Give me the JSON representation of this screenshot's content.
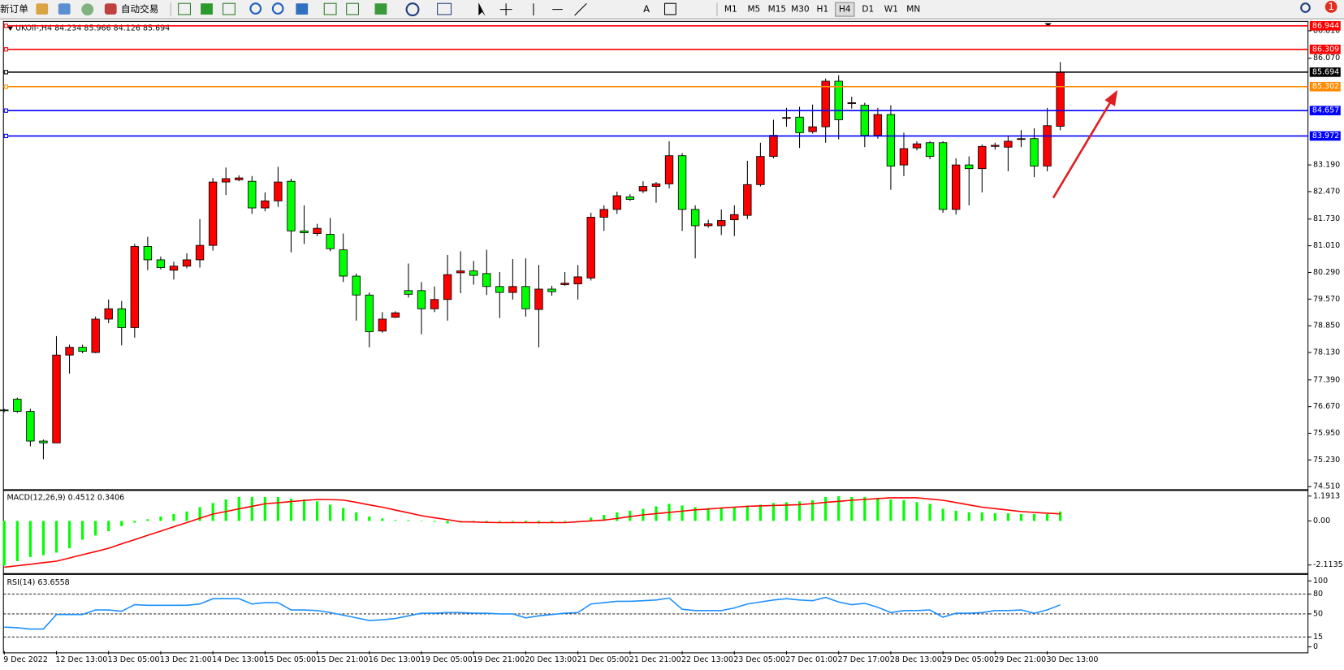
{
  "toolbar": {
    "new_order": "新订单",
    "auto_trading": "自动交易",
    "timeframes": [
      "M1",
      "M5",
      "M15",
      "M30",
      "H1",
      "H4",
      "D1",
      "W1",
      "MN"
    ],
    "notification_count": 1
  },
  "chart_data": [
    {
      "type": "candlestick",
      "title": "UKOil-,H4 84.234 85.966 84.126 85.694",
      "categories": [
        "9 Dec 2022",
        null,
        null,
        null,
        "12 Dec 13:00",
        null,
        null,
        null,
        "13 Dec 05:00",
        null,
        null,
        null,
        "13 Dec 21:00",
        null,
        null,
        null,
        "14 Dec 13:00",
        null,
        null,
        null,
        "15 Dec 05:00",
        null,
        null,
        null,
        "15 Dec 21:00",
        null,
        null,
        null,
        "16 Dec 13:00",
        null,
        null,
        null,
        "19 Dec 05:00",
        null,
        null,
        null,
        "19 Dec 21:00",
        null,
        null,
        null,
        "20 Dec 13:00",
        null,
        null,
        null,
        "21 Dec 05:00",
        null,
        null,
        null,
        "21 Dec 21:00",
        null,
        null,
        null,
        "22 Dec 13:00",
        null,
        null,
        null,
        "23 Dec 05:00",
        null,
        null,
        null,
        "27 Dec 01:00",
        null,
        null,
        null,
        "27 Dec 17:00",
        null,
        null,
        null,
        "28 Dec 13:00",
        null,
        null,
        null,
        "29 Dec 05:00",
        null,
        null,
        null,
        "29 Dec 21:00",
        null,
        null,
        null,
        "30 Dec 13:00",
        null
      ],
      "open": [
        76.58,
        76.87,
        76.54,
        75.74,
        75.69,
        78.06,
        78.27,
        78.13,
        79.03,
        79.31,
        78.8,
        80.99,
        80.63,
        80.35,
        80.46,
        80.63,
        81.02,
        82.73,
        82.79,
        82.75,
        82.03,
        82.22,
        82.75,
        81.41,
        81.34,
        81.32,
        80.9,
        80.19,
        79.68,
        78.71,
        79.08,
        79.8,
        79.8,
        79.31,
        79.56,
        80.28,
        80.33,
        80.26,
        79.91,
        79.75,
        79.91,
        79.29,
        79.84,
        79.96,
        79.98,
        80.14,
        81.78,
        81.99,
        82.33,
        82.49,
        82.61,
        82.68,
        83.44,
        81.99,
        81.55,
        81.55,
        81.71,
        81.83,
        82.66,
        83.42,
        84.45,
        84.48,
        84.09,
        84.22,
        85.45,
        84.85,
        84.8,
        83.99,
        84.55,
        83.19,
        83.65,
        83.79,
        83.79,
        81.99,
        83.19,
        83.09,
        83.69,
        83.67,
        83.88,
        83.9,
        83.16,
        84.234
      ],
      "high": [
        76.61,
        76.91,
        76.61,
        75.78,
        78.57,
        78.34,
        78.34,
        79.1,
        79.56,
        79.52,
        81.06,
        81.25,
        80.72,
        80.58,
        80.81,
        81.73,
        82.84,
        83.12,
        82.91,
        82.89,
        82.45,
        83.14,
        82.82,
        82.1,
        81.6,
        81.76,
        81.34,
        80.26,
        79.75,
        79.22,
        79.24,
        80.53,
        80.03,
        79.91,
        80.76,
        80.86,
        80.6,
        80.9,
        80.3,
        80.65,
        80.67,
        80.49,
        79.93,
        80.3,
        80.49,
        81.9,
        82.1,
        82.47,
        82.4,
        82.75,
        82.73,
        83.83,
        83.51,
        82.1,
        81.71,
        81.99,
        82.1,
        83.3,
        83.79,
        84.41,
        84.73,
        84.76,
        84.82,
        85.52,
        85.61,
        85.03,
        84.87,
        84.73,
        84.8,
        84.06,
        83.83,
        83.83,
        83.83,
        83.37,
        83.42,
        83.74,
        83.79,
        83.99,
        84.13,
        84.18,
        84.73,
        85.966
      ],
      "low": [
        76.52,
        76.5,
        75.6,
        75.25,
        75.69,
        77.56,
        78.11,
        78.11,
        78.92,
        78.32,
        78.53,
        80.35,
        80.37,
        80.1,
        80.4,
        80.42,
        80.88,
        82.38,
        82.75,
        81.87,
        81.94,
        82.06,
        80.83,
        81.06,
        81.27,
        80.86,
        80.03,
        78.99,
        78.27,
        78.66,
        79.06,
        79.61,
        78.62,
        79.22,
        78.99,
        79.73,
        79.96,
        79.68,
        79.06,
        79.56,
        79.1,
        78.27,
        79.66,
        79.93,
        79.56,
        80.07,
        81.41,
        81.87,
        82.22,
        82.43,
        82.17,
        82.56,
        81.41,
        80.67,
        81.5,
        81.3,
        81.27,
        81.73,
        82.61,
        83.37,
        84.22,
        83.65,
        84.04,
        83.79,
        83.88,
        84.71,
        83.67,
        83.9,
        82.52,
        82.89,
        83.58,
        83.35,
        81.9,
        81.85,
        82.1,
        82.45,
        83.6,
        83.02,
        83.67,
        82.86,
        83.02,
        84.126
      ],
      "close": [
        76.56,
        76.54,
        75.74,
        75.69,
        78.06,
        78.27,
        78.16,
        79.03,
        79.31,
        78.8,
        80.99,
        80.63,
        80.42,
        80.46,
        80.63,
        81.02,
        82.73,
        82.82,
        82.84,
        82.03,
        82.22,
        82.73,
        81.41,
        81.36,
        81.48,
        80.93,
        80.19,
        79.68,
        78.69,
        79.03,
        79.2,
        79.7,
        79.31,
        79.56,
        80.23,
        80.33,
        80.21,
        79.91,
        79.75,
        79.91,
        79.31,
        79.84,
        79.77,
        80.0,
        80.17,
        81.78,
        81.99,
        82.36,
        82.26,
        82.61,
        82.68,
        83.44,
        81.99,
        81.55,
        81.6,
        81.69,
        81.85,
        82.66,
        83.42,
        83.99,
        84.47,
        84.06,
        84.22,
        85.45,
        84.41,
        84.87,
        83.99,
        84.55,
        83.16,
        83.63,
        83.76,
        83.42,
        81.99,
        83.19,
        83.09,
        83.69,
        83.72,
        83.83,
        83.9,
        83.16,
        84.25,
        85.694
      ],
      "up_color": "#ff0000",
      "down_color": "#00ff00",
      "ylim": [
        74.44,
        87.04
      ],
      "yticks": [
        {
          "value": 86.81,
          "label": "86.810"
        },
        {
          "value": 86.07,
          "label": "86.070"
        },
        {
          "value": 83.19,
          "label": "83.190"
        },
        {
          "value": 82.47,
          "label": "82.470"
        },
        {
          "value": 81.73,
          "label": "81.730"
        },
        {
          "value": 81.01,
          "label": "81.010"
        },
        {
          "value": 80.29,
          "label": "80.290"
        },
        {
          "value": 79.57,
          "label": "79.570"
        },
        {
          "value": 78.85,
          "label": "78.850"
        },
        {
          "value": 78.13,
          "label": "78.130"
        },
        {
          "value": 77.39,
          "label": "77.390"
        },
        {
          "value": 76.67,
          "label": "76.670"
        },
        {
          "value": 75.95,
          "label": "75.950"
        },
        {
          "value": 75.23,
          "label": "75.230"
        },
        {
          "value": 74.51,
          "label": "74.510"
        }
      ],
      "grid": false,
      "hlines": [
        {
          "value": 86.944,
          "color": "#ff0000"
        },
        {
          "value": 86.309,
          "color": "#ff0000"
        },
        {
          "value": 85.694,
          "color": "#000000"
        },
        {
          "value": 85.302,
          "color": "#ff8c00"
        },
        {
          "value": 84.657,
          "color": "#0000ff"
        },
        {
          "value": 83.972,
          "color": "#0000ff"
        }
      ]
    },
    {
      "type": "macd",
      "title": "MACD(12,26,9) 0.4512 0.3406",
      "series": [
        {
          "style": "histogram",
          "color": "#00ff00",
          "values": [
            -2.14,
            -1.93,
            -1.73,
            -1.64,
            -1.52,
            -1.31,
            -0.9,
            -0.7,
            -0.49,
            -0.25,
            -0.08,
            0.08,
            0.21,
            0.33,
            0.45,
            0.66,
            0.86,
            1.03,
            1.15,
            1.15,
            1.15,
            1.15,
            1.07,
            1.03,
            0.94,
            0.78,
            0.62,
            0.41,
            0.21,
            0.12,
            0.04,
            0.04,
            0.0,
            -0.04,
            -0.12,
            -0.08,
            -0.04,
            -0.04,
            -0.04,
            -0.04,
            -0.08,
            -0.12,
            -0.08,
            -0.04,
            0.0,
            0.16,
            0.29,
            0.41,
            0.49,
            0.58,
            0.7,
            0.82,
            0.74,
            0.66,
            0.62,
            0.62,
            0.66,
            0.74,
            0.78,
            0.86,
            0.9,
            0.94,
            0.99,
            1.15,
            1.19,
            1.15,
            1.15,
            1.11,
            1.03,
            0.99,
            0.9,
            0.82,
            0.58,
            0.49,
            0.41,
            0.41,
            0.37,
            0.37,
            0.33,
            0.33,
            0.33,
            0.4512
          ]
        },
        {
          "style": "line",
          "color": "#ff0000",
          "values": [
            -2.22,
            -2.15,
            -2.08,
            -2.0,
            -1.93,
            -1.78,
            -1.62,
            -1.47,
            -1.31,
            -1.1,
            -0.9,
            -0.69,
            -0.49,
            -0.28,
            -0.08,
            0.13,
            0.33,
            0.45,
            0.58,
            0.7,
            0.82,
            0.87,
            0.93,
            0.98,
            1.03,
            1.02,
            1.0,
            0.89,
            0.77,
            0.66,
            0.52,
            0.39,
            0.25,
            0.15,
            0.06,
            -0.04,
            -0.05,
            -0.07,
            -0.08,
            -0.08,
            -0.08,
            -0.08,
            -0.08,
            -0.08,
            -0.04,
            0.0,
            0.04,
            0.12,
            0.21,
            0.29,
            0.35,
            0.41,
            0.47,
            0.53,
            0.57,
            0.62,
            0.66,
            0.7,
            0.72,
            0.74,
            0.76,
            0.78,
            0.83,
            0.89,
            0.94,
            0.99,
            1.03,
            1.07,
            1.11,
            1.11,
            1.11,
            1.05,
            0.99,
            0.88,
            0.77,
            0.66,
            0.59,
            0.52,
            0.45,
            0.41,
            0.37,
            0.3406
          ]
        }
      ],
      "ylim": [
        -2.465,
        1.438
      ],
      "yticks": [
        1.1913,
        {
          "value": 0,
          "label": "0.00"
        },
        -2.1135
      ]
    },
    {
      "type": "line",
      "title": "RSI(14) 63.6558",
      "series": [
        {
          "color": "#1e90ff",
          "values": [
            29.9,
            29,
            27,
            27,
            49,
            49,
            49,
            56,
            56,
            54,
            64,
            63,
            63,
            63,
            63,
            65,
            73,
            73,
            73,
            65,
            67,
            67,
            56,
            56,
            55,
            52,
            48,
            44,
            40,
            41,
            43,
            47,
            51,
            51,
            52,
            52,
            51,
            51,
            50,
            50,
            44,
            47,
            49,
            51,
            52,
            65,
            67,
            69,
            69,
            70,
            71,
            74,
            57,
            55,
            55,
            55,
            59,
            65,
            68,
            71,
            73,
            71,
            70,
            75,
            68,
            64,
            66,
            60,
            52,
            55,
            55,
            56,
            45,
            51,
            51,
            52,
            55,
            55,
            56,
            51,
            56,
            63.6558
          ]
        }
      ],
      "ylim": [
        -6.5,
        107.8
      ],
      "yticks": [
        100,
        80,
        50,
        15,
        0
      ],
      "levels": [
        80,
        50,
        15
      ]
    }
  ]
}
